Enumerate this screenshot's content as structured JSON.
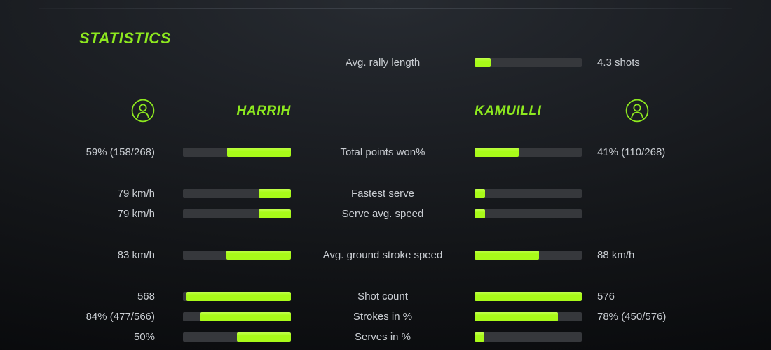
{
  "theme": {
    "accent_text": "#8de81f",
    "accent_bar": "#a8fa19",
    "bar_track": "#36383c",
    "text_color": "#c9cdd2",
    "divider": "#7dbe3a"
  },
  "title": "STATISTICS",
  "rally": {
    "label": "Avg. rally length",
    "value": "4.3 shots",
    "fill_pct": 15
  },
  "players": {
    "left": {
      "name": "HARRIH",
      "icon": "person-icon"
    },
    "right": {
      "name": "KAMUILLI",
      "icon": "person-icon"
    }
  },
  "stats": [
    {
      "label": "Total points won%",
      "left_value": "59% (158/268)",
      "left_pct": 59,
      "right_value": "41% (110/268)",
      "right_pct": 41,
      "gap_before": false
    },
    {
      "label": "Fastest serve",
      "left_value": "79 km/h",
      "left_pct": 30,
      "right_value": "",
      "right_pct": 10,
      "gap_before": true
    },
    {
      "label": "Serve avg. speed",
      "left_value": "79 km/h",
      "left_pct": 30,
      "right_value": "",
      "right_pct": 10,
      "gap_before": false
    },
    {
      "label": "Avg. ground stroke speed",
      "left_value": "83 km/h",
      "left_pct": 60,
      "right_value": "88 km/h",
      "right_pct": 60,
      "gap_before": true
    },
    {
      "label": "Shot count",
      "left_value": "568",
      "left_pct": 97,
      "right_value": "576",
      "right_pct": 100,
      "gap_before": true
    },
    {
      "label": "Strokes in %",
      "left_value": "84% (477/566)",
      "left_pct": 84,
      "right_value": "78% (450/576)",
      "right_pct": 78,
      "gap_before": false
    },
    {
      "label": "Serves in %",
      "left_value": "50%",
      "left_pct": 50,
      "right_value": "",
      "right_pct": 9,
      "gap_before": false
    }
  ],
  "chart_data": {
    "type": "bar",
    "title": "STATISTICS",
    "layout": "mirrored horizontal bar pairs with centered category labels; shared top bar for rally length",
    "categories": [
      "Avg. rally length",
      "Total points won%",
      "Fastest serve",
      "Serve avg. speed",
      "Avg. ground stroke speed",
      "Shot count",
      "Strokes in %",
      "Serves in %"
    ],
    "series": [
      {
        "name": "HARRIH",
        "values": [
          null,
          "59% (158/268)",
          "79 km/h",
          "79 km/h",
          "83 km/h",
          568,
          "84% (477/566)",
          "50%"
        ]
      },
      {
        "name": "KAMUILLI",
        "values": [
          "4.3 shots",
          "41% (110/268)",
          null,
          null,
          "88 km/h",
          576,
          "78% (450/576)",
          null
        ]
      }
    ],
    "bar_fill_percent": {
      "HARRIH": [
        null,
        59,
        30,
        30,
        60,
        97,
        84,
        50
      ],
      "KAMUILLI": [
        15,
        41,
        10,
        10,
        60,
        100,
        78,
        9
      ]
    }
  }
}
